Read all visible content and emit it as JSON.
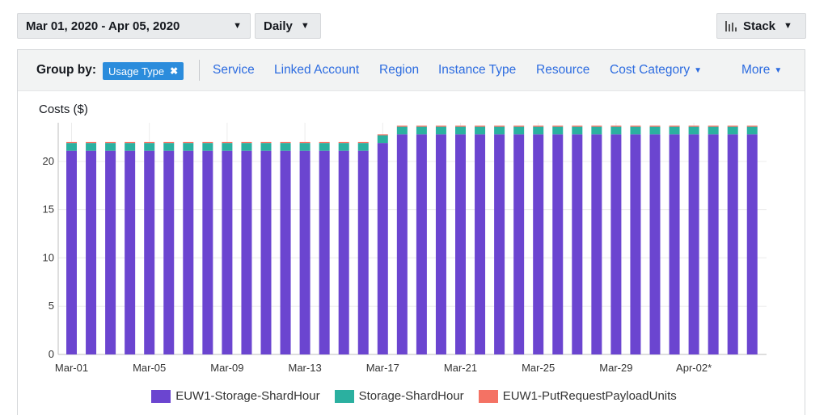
{
  "controls": {
    "date_range": "Mar 01, 2020 - Apr 05, 2020",
    "granularity": "Daily",
    "chart_style": "Stack"
  },
  "group_by": {
    "label": "Group by:",
    "active_chip": "Usage Type",
    "options": [
      "Service",
      "Linked Account",
      "Region",
      "Instance Type",
      "Resource",
      "Cost Category",
      "More"
    ]
  },
  "icons": {
    "chip_remove": "close-icon",
    "dropdown": "caret-down-icon",
    "stack": "bar-chart-icon"
  },
  "chart_data": {
    "type": "bar",
    "stacked": true,
    "ylabel": "Costs ($)",
    "ylim": [
      0,
      24
    ],
    "yticks": [
      0,
      5,
      10,
      15,
      20
    ],
    "grid": true,
    "legend_placement": "bottom",
    "x_tick_labels": [
      "Mar-01",
      "Mar-05",
      "Mar-09",
      "Mar-13",
      "Mar-17",
      "Mar-21",
      "Mar-25",
      "Mar-29",
      "Apr-02*"
    ],
    "categories": [
      "Mar-01",
      "Mar-02",
      "Mar-03",
      "Mar-04",
      "Mar-05",
      "Mar-06",
      "Mar-07",
      "Mar-08",
      "Mar-09",
      "Mar-10",
      "Mar-11",
      "Mar-12",
      "Mar-13",
      "Mar-14",
      "Mar-15",
      "Mar-16",
      "Mar-17",
      "Mar-18",
      "Mar-19",
      "Mar-20",
      "Mar-21",
      "Mar-22",
      "Mar-23",
      "Mar-24",
      "Mar-25",
      "Mar-26",
      "Mar-27",
      "Mar-28",
      "Mar-29",
      "Mar-30",
      "Mar-31",
      "Apr-01",
      "Apr-02",
      "Apr-03",
      "Apr-04",
      "Apr-05"
    ],
    "series": [
      {
        "name": "EUW1-Storage-ShardHour",
        "color": "#6b45d0",
        "values": [
          21.1,
          21.1,
          21.1,
          21.1,
          21.1,
          21.1,
          21.1,
          21.1,
          21.1,
          21.1,
          21.1,
          21.1,
          21.1,
          21.1,
          21.1,
          21.1,
          21.9,
          22.8,
          22.8,
          22.8,
          22.8,
          22.8,
          22.8,
          22.8,
          22.8,
          22.8,
          22.8,
          22.8,
          22.8,
          22.8,
          22.8,
          22.8,
          22.8,
          22.8,
          22.8,
          22.8
        ]
      },
      {
        "name": "Storage-ShardHour",
        "color": "#2bb0a0",
        "values": [
          0.8,
          0.8,
          0.8,
          0.8,
          0.8,
          0.8,
          0.8,
          0.8,
          0.8,
          0.8,
          0.8,
          0.8,
          0.8,
          0.8,
          0.8,
          0.8,
          0.8,
          0.8,
          0.8,
          0.8,
          0.8,
          0.8,
          0.8,
          0.8,
          0.8,
          0.8,
          0.8,
          0.8,
          0.8,
          0.8,
          0.8,
          0.8,
          0.8,
          0.8,
          0.8,
          0.8
        ]
      },
      {
        "name": "EUW1-PutRequestPayloadUnits",
        "color": "#f47264",
        "values": [
          0.1,
          0.1,
          0.1,
          0.1,
          0.1,
          0.1,
          0.1,
          0.1,
          0.1,
          0.1,
          0.1,
          0.1,
          0.1,
          0.1,
          0.1,
          0.1,
          0.1,
          0.1,
          0.1,
          0.1,
          0.1,
          0.1,
          0.1,
          0.1,
          0.1,
          0.1,
          0.1,
          0.1,
          0.1,
          0.1,
          0.1,
          0.1,
          0.1,
          0.1,
          0.1,
          0.1
        ]
      }
    ]
  }
}
